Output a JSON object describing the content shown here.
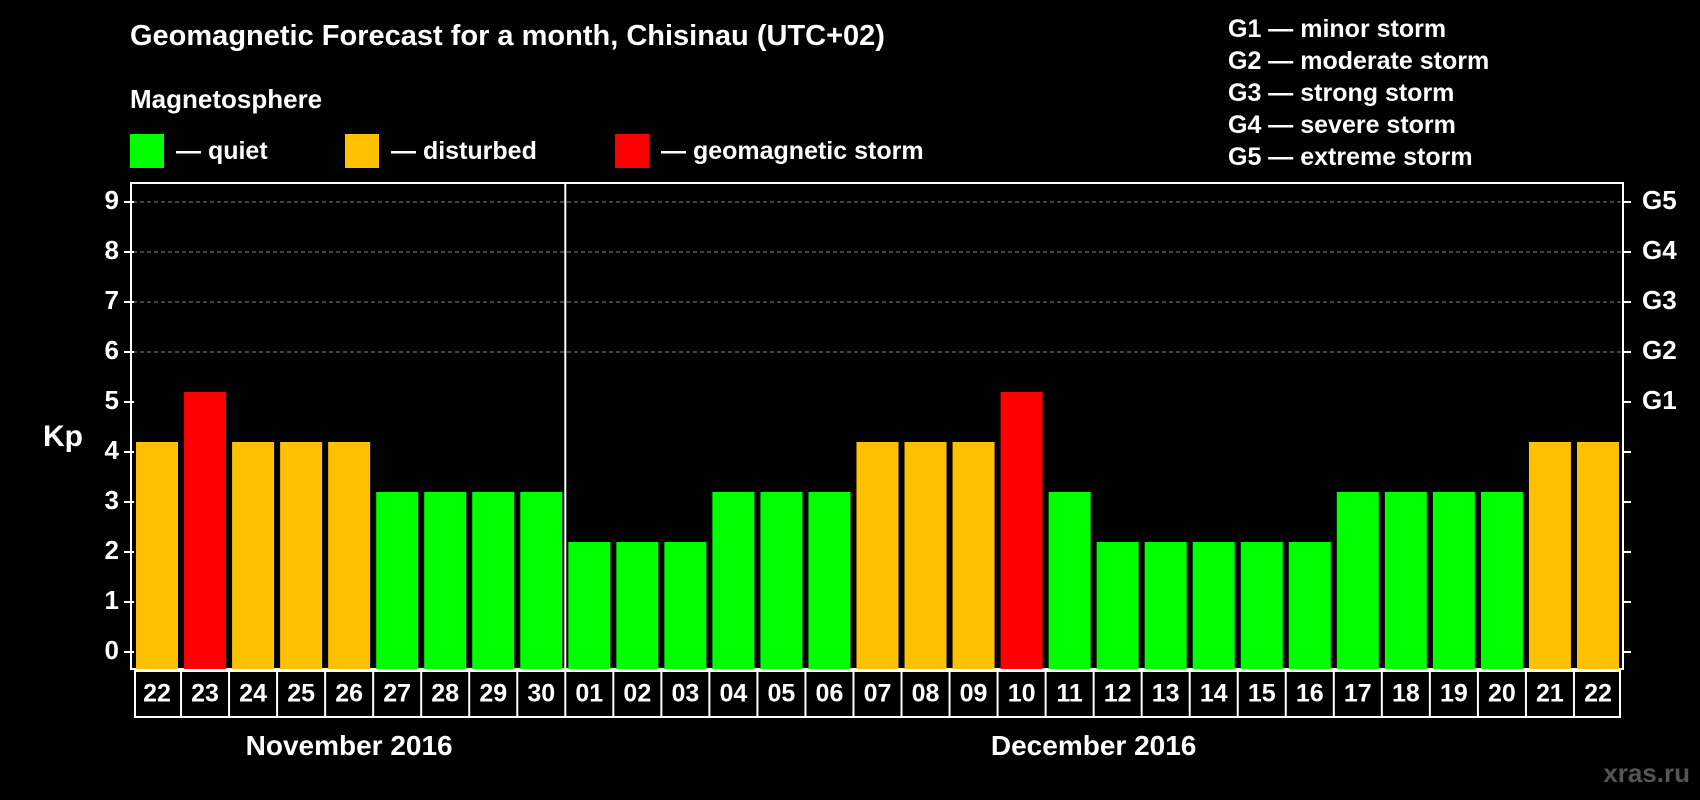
{
  "chart_data": {
    "type": "bar",
    "title": "Geomagnetic Forecast for a month, Chisinau (UTC+02)",
    "subtitle": "Magnetosphere",
    "ylabel": "Kp",
    "ylim": [
      0,
      9
    ],
    "yticks": [
      "0",
      "1",
      "2",
      "3",
      "4",
      "5",
      "6",
      "7",
      "8",
      "9"
    ],
    "right_labels": [
      {
        "kp": 5,
        "label": "G1"
      },
      {
        "kp": 6,
        "label": "G2"
      },
      {
        "kp": 7,
        "label": "G3"
      },
      {
        "kp": 8,
        "label": "G4"
      },
      {
        "kp": 9,
        "label": "G5"
      }
    ],
    "grid_levels": [
      6,
      7,
      8,
      9
    ],
    "categories": [
      "22",
      "23",
      "24",
      "25",
      "26",
      "27",
      "28",
      "29",
      "30",
      "01",
      "02",
      "03",
      "04",
      "05",
      "06",
      "07",
      "08",
      "09",
      "10",
      "11",
      "12",
      "13",
      "14",
      "15",
      "16",
      "17",
      "18",
      "19",
      "20",
      "21",
      "22"
    ],
    "values": [
      4,
      5,
      4,
      4,
      4,
      3,
      3,
      3,
      3,
      2,
      2,
      2,
      3,
      3,
      3,
      4,
      4,
      4,
      5,
      3,
      2,
      2,
      2,
      2,
      2,
      3,
      3,
      3,
      3,
      4,
      4
    ],
    "months": [
      {
        "label": "November 2016",
        "start": 0,
        "end": 8
      },
      {
        "label": "December 2016",
        "start": 9,
        "end": 30
      }
    ],
    "legend": [
      {
        "label": "— quiet",
        "color": "#00ff00"
      },
      {
        "label": "— disturbed",
        "color": "#ffc000"
      },
      {
        "label": "— geomagnetic storm",
        "color": "#ff0000"
      }
    ],
    "storm_scale": [
      "G1 — minor storm",
      "G2 — moderate storm",
      "G3 — strong storm",
      "G4 — severe storm",
      "G5 — extreme storm"
    ]
  },
  "colors": {
    "quiet": "#00ff00",
    "disturbed": "#ffc000",
    "storm": "#ff0000",
    "background": "#000000",
    "axis": "#ffffff",
    "grid": "#888888"
  },
  "watermark": "xras.ru"
}
